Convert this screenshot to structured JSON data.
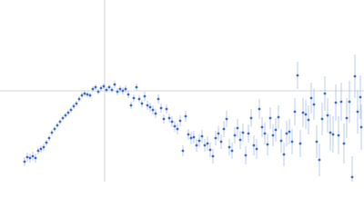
{
  "chart_data": {
    "type": "scatter",
    "color": "#3b6cc9",
    "error_color": "#aac1ea",
    "xlim": [
      -115,
      285
    ],
    "ylim": [
      -100,
      100
    ],
    "x": [
      -88,
      -85,
      -82,
      -79,
      -76,
      -73,
      -70,
      -67,
      -64,
      -61,
      -58,
      -55,
      -52,
      -49,
      -46,
      -43,
      -40,
      -37,
      -34,
      -31,
      -28,
      -25,
      -22,
      -19,
      -16,
      -13,
      -10,
      -7,
      -4,
      -1,
      2,
      5,
      8,
      11,
      14,
      17,
      20,
      23,
      26,
      29,
      32,
      35,
      38,
      41,
      44,
      47,
      50,
      53,
      56,
      59,
      62,
      65,
      68,
      71,
      74,
      77,
      80,
      83,
      86,
      89,
      92,
      95,
      98,
      101,
      104,
      107,
      110,
      113,
      116,
      119,
      122,
      125,
      128,
      131,
      134,
      137,
      140,
      143,
      146,
      149,
      152,
      155,
      158,
      161,
      164,
      167,
      170,
      173,
      176,
      179,
      182,
      185,
      188,
      191,
      194,
      197,
      200,
      203,
      206,
      209,
      212,
      215,
      218,
      221,
      224,
      227,
      230,
      233,
      236,
      239,
      242,
      245,
      248,
      251,
      254,
      257,
      260,
      263,
      266,
      269,
      272,
      275,
      278,
      281,
      282
    ],
    "values": [
      -78,
      -73,
      -74,
      -72,
      -74,
      -66,
      -64,
      -62,
      -57,
      -52,
      -46,
      -42,
      -38,
      -34,
      -30,
      -27,
      -24,
      -21,
      -17,
      -14,
      -9,
      -5,
      -3,
      -4,
      -5,
      2,
      4,
      -1,
      3,
      5,
      1,
      4,
      1,
      7,
      -1,
      2,
      0,
      2,
      -4,
      -16,
      -8,
      4,
      -9,
      -14,
      -6,
      -16,
      -18,
      -21,
      -25,
      -9,
      -19,
      -31,
      -20,
      -30,
      -34,
      -39,
      -42,
      -33,
      -66,
      -28,
      -48,
      -52,
      -51,
      -60,
      -55,
      -50,
      -60,
      -58,
      -65,
      -72,
      -52,
      -47,
      -56,
      -42,
      -31,
      -62,
      -66,
      -49,
      -41,
      -54,
      -46,
      -71,
      -47,
      -30,
      -60,
      -64,
      -20,
      -40,
      -47,
      -59,
      -30,
      -49,
      -43,
      -29,
      -55,
      -70,
      -47,
      -45,
      -56,
      -23,
      17,
      -58,
      -24,
      -26,
      -32,
      -8,
      -15,
      -56,
      -76,
      -31,
      -3,
      -27,
      -46,
      -48,
      -13,
      -49,
      -12,
      -58,
      -30,
      -12,
      -95,
      16,
      -23,
      -7,
      -40
    ],
    "errors": [
      5,
      5,
      5,
      5,
      5,
      4,
      4,
      4,
      3,
      3,
      3,
      3,
      3,
      3,
      3,
      3,
      3,
      3,
      3,
      3,
      3,
      3,
      3,
      3,
      3,
      3,
      3,
      3,
      3,
      3,
      3,
      3,
      3,
      4,
      4,
      4,
      4,
      4,
      4,
      4,
      4,
      4,
      4,
      4,
      5,
      5,
      5,
      5,
      5,
      5,
      5,
      5,
      5,
      5,
      6,
      6,
      6,
      6,
      6,
      6,
      6,
      7,
      7,
      7,
      7,
      7,
      7,
      8,
      8,
      8,
      8,
      8,
      8,
      9,
      9,
      9,
      9,
      9,
      10,
      10,
      10,
      10,
      10,
      10,
      11,
      11,
      11,
      11,
      12,
      12,
      12,
      12,
      13,
      13,
      13,
      13,
      14,
      14,
      14,
      15,
      15,
      15,
      16,
      16,
      16,
      17,
      17,
      18,
      18,
      18,
      19,
      19,
      20,
      20,
      20,
      21,
      21,
      22,
      22,
      23,
      23,
      24,
      24,
      24,
      25
    ]
  }
}
